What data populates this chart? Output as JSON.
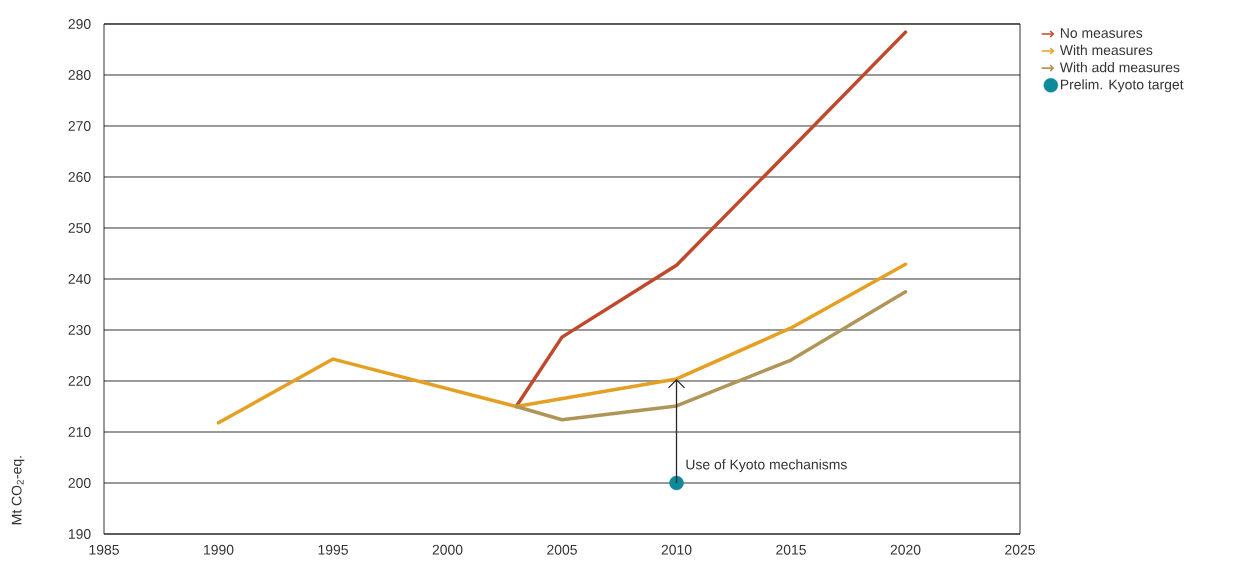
{
  "chart_data": {
    "type": "line",
    "ylabel": "Mt CO$_{2}$-eq.",
    "xlim": [
      1985,
      2025
    ],
    "xticks": [
      1985,
      1990,
      1995,
      2000,
      2005,
      2010,
      2015,
      2020,
      2025
    ],
    "ylim": [
      190,
      290
    ],
    "yticks": [
      190,
      200,
      210,
      220,
      230,
      240,
      250,
      260,
      270,
      280,
      290
    ],
    "grid": "y",
    "legend": "top right",
    "marker": "none",
    "line_style": "solid",
    "series": [
      {
        "name": "No measures",
        "color": "#c0482b",
        "x": [
          2003,
          2005,
          2010,
          2015,
          2020
        ],
        "values": [
          215,
          228.6,
          242.7,
          265.5,
          288.4
        ]
      },
      {
        "name": "With measures",
        "color": "#e5a024",
        "x": [
          1990,
          1995,
          2003,
          2010,
          2015,
          2020
        ],
        "values": [
          211.8,
          224.3,
          215,
          220.4,
          230.4,
          242.9
        ]
      },
      {
        "name": "With add measures",
        "color": "#b09558",
        "x": [
          2003,
          2005,
          2010,
          2015,
          2020
        ],
        "values": [
          215,
          212.4,
          215.1,
          224.1,
          237.5
        ]
      },
      {
        "name": "Prelim. Kyoto target",
        "color": "#0e8a9a",
        "type": "scatter",
        "marker": "circle",
        "x": [
          2010
        ],
        "values": [
          200
        ]
      }
    ],
    "annotations": [
      {
        "text": "Use of Kyoto mechanisms",
        "x": 2010,
        "y": 220.4
      }
    ]
  }
}
